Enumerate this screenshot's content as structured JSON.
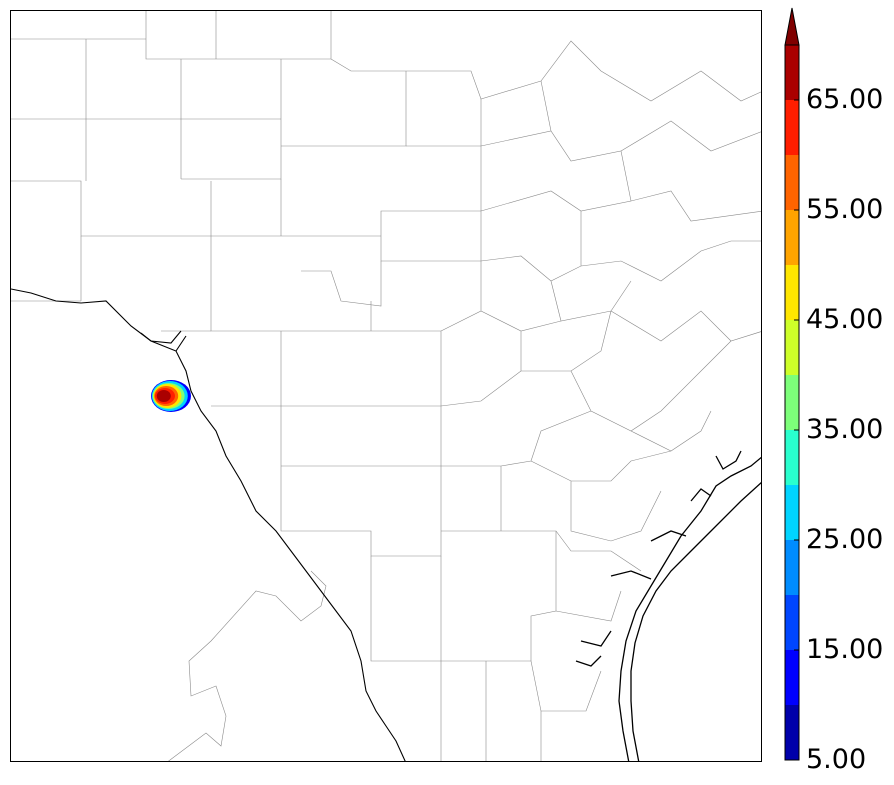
{
  "colorbar": {
    "tick_labels": [
      "5.00",
      "15.00",
      "25.00",
      "35.00",
      "45.00",
      "55.00",
      "65.00"
    ],
    "bands": [
      {
        "from": 5,
        "to": 10,
        "color": "#0000aa"
      },
      {
        "from": 10,
        "to": 15,
        "color": "#0000ff"
      },
      {
        "from": 15,
        "to": 20,
        "color": "#0046ff"
      },
      {
        "from": 20,
        "to": 25,
        "color": "#008cff"
      },
      {
        "from": 25,
        "to": 30,
        "color": "#00d4ff"
      },
      {
        "from": 30,
        "to": 35,
        "color": "#29ffce"
      },
      {
        "from": 35,
        "to": 40,
        "color": "#7dff7a"
      },
      {
        "from": 40,
        "to": 45,
        "color": "#ceff29"
      },
      {
        "from": 45,
        "to": 50,
        "color": "#ffe600"
      },
      {
        "from": 50,
        "to": 55,
        "color": "#ffa400"
      },
      {
        "from": 55,
        "to": 60,
        "color": "#ff6400"
      },
      {
        "from": 60,
        "to": 65,
        "color": "#ff1e00"
      },
      {
        "from": 65,
        "to": 70,
        "color": "#aa0000"
      }
    ],
    "extend": "max",
    "extend_color": "#800000",
    "min": 5,
    "max": 70
  },
  "map": {
    "background": "#ffffff",
    "county_line_color": "#8a8a8a",
    "border_color": "#000000",
    "echo_colors": [
      "#0000ff",
      "#00d4ff",
      "#7dff7a",
      "#ffe600",
      "#ff6400",
      "#ff1e00",
      "#aa0000"
    ]
  }
}
